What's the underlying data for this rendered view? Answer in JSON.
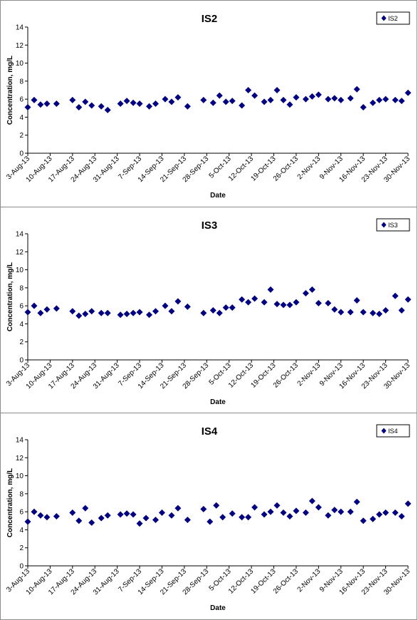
{
  "chart_data": [
    {
      "type": "scatter",
      "title": "IS2",
      "xlabel": "Date",
      "ylabel": "Concentration, mg/L",
      "ylim": [
        0,
        14
      ],
      "yticks": [
        0,
        2,
        4,
        6,
        8,
        10,
        12,
        14
      ],
      "xlim": [
        "2013-08-03",
        "2013-11-30"
      ],
      "xtick_labels": [
        "3-Aug-13",
        "10-Aug-13",
        "17-Aug-13",
        "24-Aug-13",
        "31-Aug-13",
        "7-Sep-13",
        "14-Sep-13",
        "21-Sep-13",
        "28-Sep-13",
        "5-Oct-13",
        "12-Oct-13",
        "19-Oct-13",
        "26-Oct-13",
        "2-Nov-13",
        "9-Nov-13",
        "16-Nov-13",
        "23-Nov-13",
        "30-Nov-13"
      ],
      "grid": false,
      "legend_position": "top-right",
      "series": [
        {
          "name": "IS2",
          "color": "#000080",
          "marker": "diamond",
          "x": [
            "2013-08-03",
            "2013-08-05",
            "2013-08-07",
            "2013-08-09",
            "2013-08-12",
            "2013-08-17",
            "2013-08-19",
            "2013-08-21",
            "2013-08-23",
            "2013-08-26",
            "2013-08-28",
            "2013-09-01",
            "2013-09-03",
            "2013-09-05",
            "2013-09-07",
            "2013-09-10",
            "2013-09-12",
            "2013-09-15",
            "2013-09-17",
            "2013-09-19",
            "2013-09-22",
            "2013-09-27",
            "2013-09-30",
            "2013-10-02",
            "2013-10-04",
            "2013-10-06",
            "2013-10-09",
            "2013-10-11",
            "2013-10-13",
            "2013-10-16",
            "2013-10-18",
            "2013-10-20",
            "2013-10-22",
            "2013-10-24",
            "2013-10-26",
            "2013-10-29",
            "2013-10-31",
            "2013-11-02",
            "2013-11-05",
            "2013-11-07",
            "2013-11-09",
            "2013-11-12",
            "2013-11-14",
            "2013-11-16",
            "2013-11-19",
            "2013-11-21",
            "2013-11-23",
            "2013-11-26",
            "2013-11-28",
            "2013-11-30"
          ],
          "y": [
            5.1,
            5.9,
            5.4,
            5.5,
            5.5,
            5.9,
            5.1,
            5.7,
            5.3,
            5.2,
            4.8,
            5.5,
            5.8,
            5.6,
            5.5,
            5.2,
            5.5,
            6.0,
            5.7,
            6.2,
            5.2,
            5.9,
            5.6,
            6.4,
            5.7,
            5.8,
            5.3,
            7.0,
            6.4,
            5.7,
            5.9,
            7.0,
            5.9,
            5.4,
            6.2,
            6.0,
            6.3,
            6.5,
            6.0,
            6.1,
            5.9,
            6.1,
            7.1,
            5.1,
            5.6,
            5.9,
            6.0,
            5.9,
            5.8,
            6.7
          ]
        }
      ]
    },
    {
      "type": "scatter",
      "title": "IS3",
      "xlabel": "Date",
      "ylabel": "Concentration, mg/L",
      "ylim": [
        0,
        14
      ],
      "yticks": [
        0,
        2,
        4,
        6,
        8,
        10,
        12,
        14
      ],
      "xlim": [
        "2013-08-03",
        "2013-11-30"
      ],
      "xtick_labels": [
        "3-Aug-13",
        "10-Aug-13",
        "17-Aug-13",
        "24-Aug-13",
        "31-Aug-13",
        "7-Sep-13",
        "14-Sep-13",
        "21-Sep-13",
        "28-Sep-13",
        "5-Oct-13",
        "12-Oct-13",
        "19-Oct-13",
        "26-Oct-13",
        "2-Nov-13",
        "9-Nov-13",
        "16-Nov-13",
        "23-Nov-13",
        "30-Nov-13"
      ],
      "grid": false,
      "legend_position": "top-right",
      "series": [
        {
          "name": "IS3",
          "color": "#000080",
          "marker": "diamond",
          "x": [
            "2013-08-03",
            "2013-08-05",
            "2013-08-07",
            "2013-08-09",
            "2013-08-12",
            "2013-08-17",
            "2013-08-19",
            "2013-08-21",
            "2013-08-23",
            "2013-08-26",
            "2013-08-28",
            "2013-09-01",
            "2013-09-03",
            "2013-09-05",
            "2013-09-07",
            "2013-09-10",
            "2013-09-12",
            "2013-09-15",
            "2013-09-17",
            "2013-09-19",
            "2013-09-22",
            "2013-09-27",
            "2013-09-30",
            "2013-10-02",
            "2013-10-04",
            "2013-10-06",
            "2013-10-09",
            "2013-10-11",
            "2013-10-13",
            "2013-10-16",
            "2013-10-18",
            "2013-10-20",
            "2013-10-22",
            "2013-10-24",
            "2013-10-26",
            "2013-10-29",
            "2013-10-31",
            "2013-11-02",
            "2013-11-05",
            "2013-11-07",
            "2013-11-09",
            "2013-11-12",
            "2013-11-14",
            "2013-11-16",
            "2013-11-19",
            "2013-11-21",
            "2013-11-23",
            "2013-11-26",
            "2013-11-28",
            "2013-11-30"
          ],
          "y": [
            5.3,
            6.0,
            5.2,
            5.6,
            5.7,
            5.4,
            4.9,
            5.1,
            5.4,
            5.2,
            5.2,
            5.0,
            5.1,
            5.2,
            5.3,
            5.0,
            5.4,
            6.0,
            5.4,
            6.5,
            5.9,
            5.2,
            5.5,
            5.2,
            5.8,
            5.8,
            6.7,
            6.4,
            6.8,
            6.4,
            7.8,
            6.2,
            6.1,
            6.1,
            6.4,
            7.4,
            7.8,
            6.3,
            6.3,
            5.6,
            5.3,
            5.3,
            6.6,
            5.3,
            5.2,
            5.1,
            5.5,
            7.1,
            5.5,
            6.7
          ]
        }
      ]
    },
    {
      "type": "scatter",
      "title": "IS4",
      "xlabel": "Date",
      "ylabel": "Concentration, mg/L",
      "ylim": [
        0,
        14
      ],
      "yticks": [
        0,
        2,
        4,
        6,
        8,
        10,
        12,
        14
      ],
      "xlim": [
        "2013-08-03",
        "2013-11-30"
      ],
      "xtick_labels": [
        "3-Aug-13",
        "10-Aug-13",
        "17-Aug-13",
        "24-Aug-13",
        "31-Aug-13",
        "7-Sep-13",
        "14-Sep-13",
        "21-Sep-13",
        "28-Sep-13",
        "5-Oct-13",
        "12-Oct-13",
        "19-Oct-13",
        "26-Oct-13",
        "2-Nov-13",
        "9-Nov-13",
        "16-Nov-13",
        "23-Nov-13",
        "30-Nov-13"
      ],
      "grid": false,
      "legend_position": "top-right",
      "series": [
        {
          "name": "IS4",
          "color": "#000080",
          "marker": "diamond",
          "x": [
            "2013-08-03",
            "2013-08-05",
            "2013-08-07",
            "2013-08-09",
            "2013-08-12",
            "2013-08-17",
            "2013-08-19",
            "2013-08-21",
            "2013-08-23",
            "2013-08-26",
            "2013-08-28",
            "2013-09-01",
            "2013-09-03",
            "2013-09-05",
            "2013-09-07",
            "2013-09-09",
            "2013-09-12",
            "2013-09-14",
            "2013-09-17",
            "2013-09-19",
            "2013-09-22",
            "2013-09-27",
            "2013-09-29",
            "2013-10-01",
            "2013-10-03",
            "2013-10-06",
            "2013-10-09",
            "2013-10-11",
            "2013-10-13",
            "2013-10-16",
            "2013-10-18",
            "2013-10-20",
            "2013-10-22",
            "2013-10-24",
            "2013-10-26",
            "2013-10-29",
            "2013-10-31",
            "2013-11-02",
            "2013-11-05",
            "2013-11-07",
            "2013-11-09",
            "2013-11-12",
            "2013-11-14",
            "2013-11-16",
            "2013-11-19",
            "2013-11-21",
            "2013-11-23",
            "2013-11-26",
            "2013-11-28",
            "2013-11-30"
          ],
          "y": [
            4.9,
            6.0,
            5.6,
            5.4,
            5.5,
            5.9,
            5.0,
            6.4,
            4.8,
            5.3,
            5.6,
            5.7,
            5.8,
            5.7,
            4.7,
            5.3,
            5.1,
            5.9,
            5.6,
            6.4,
            5.1,
            6.3,
            4.9,
            6.7,
            5.4,
            5.8,
            5.4,
            5.4,
            6.5,
            5.7,
            6.0,
            6.7,
            5.9,
            5.5,
            6.1,
            5.9,
            7.2,
            6.5,
            5.6,
            6.2,
            6.0,
            6.0,
            7.1,
            5.0,
            5.2,
            5.7,
            5.9,
            5.9,
            5.5,
            6.9
          ]
        }
      ]
    }
  ]
}
